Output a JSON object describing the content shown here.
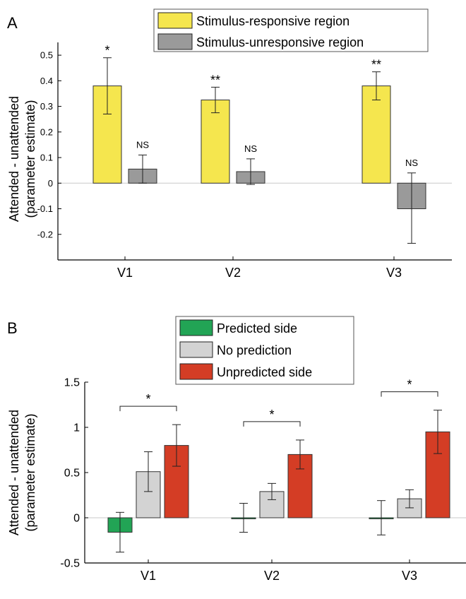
{
  "chart_data": [
    {
      "panel_label": "A",
      "type": "bar",
      "categories": [
        "V1",
        "V2",
        "V3"
      ],
      "ylabel_line1": "Attended - unattended",
      "ylabel_line2": "(parameter estimate)",
      "ylim": [
        -0.3,
        0.55
      ],
      "yticks": [
        -0.2,
        -0.1,
        0,
        0.1,
        0.2,
        0.3,
        0.4,
        0.5
      ],
      "ytick_labels": [
        "-0.2",
        "-0.1",
        "0",
        "0.1",
        "0.2",
        "0.3",
        "0.4",
        "0.5"
      ],
      "legend_position": "top-right",
      "grid": false,
      "series": [
        {
          "name": "Stimulus-responsive region",
          "color": "#f5e64e",
          "values": [
            0.38,
            0.325,
            0.38
          ],
          "err_up": [
            0.11,
            0.05,
            0.055
          ],
          "err_down": [
            0.11,
            0.05,
            0.055
          ],
          "annotations": [
            "*",
            "**",
            "**"
          ]
        },
        {
          "name": "Stimulus-unresponsive region",
          "color": "#9a9a9a",
          "values": [
            0.055,
            0.045,
            -0.1
          ],
          "err_up": [
            0.055,
            0.05,
            0.14
          ],
          "err_down": [
            0.055,
            0.05,
            0.135
          ],
          "annotations": [
            "NS",
            "NS",
            "NS"
          ]
        }
      ]
    },
    {
      "panel_label": "B",
      "type": "bar",
      "categories": [
        "V1",
        "V2",
        "V3"
      ],
      "ylabel_line1": "Attended - unattended",
      "ylabel_line2": "(parameter estimate)",
      "ylim": [
        -0.5,
        1.5
      ],
      "yticks": [
        -0.5,
        0,
        0.5,
        1,
        1.5
      ],
      "ytick_labels": [
        "-0.5",
        "0",
        "0.5",
        "1",
        "1.5"
      ],
      "legend_position": "top-right",
      "grid": false,
      "series": [
        {
          "name": "Predicted side",
          "color": "#22a455",
          "values": [
            -0.16,
            0.0,
            0.0
          ],
          "err_up": [
            0.22,
            0.16,
            0.19
          ],
          "err_down": [
            0.22,
            0.16,
            0.19
          ]
        },
        {
          "name": "No prediction",
          "color": "#d3d3d3",
          "values": [
            0.51,
            0.29,
            0.21
          ],
          "err_up": [
            0.22,
            0.09,
            0.1
          ],
          "err_down": [
            0.22,
            0.09,
            0.1
          ]
        },
        {
          "name": "Unpredicted side",
          "color": "#d43d25",
          "values": [
            0.8,
            0.7,
            0.95
          ],
          "err_up": [
            0.23,
            0.16,
            0.24
          ],
          "err_down": [
            0.23,
            0.16,
            0.24
          ]
        }
      ],
      "significance": [
        {
          "category": "V1",
          "label": "*"
        },
        {
          "category": "V2",
          "label": "*"
        },
        {
          "category": "V3",
          "label": "*"
        }
      ]
    }
  ]
}
